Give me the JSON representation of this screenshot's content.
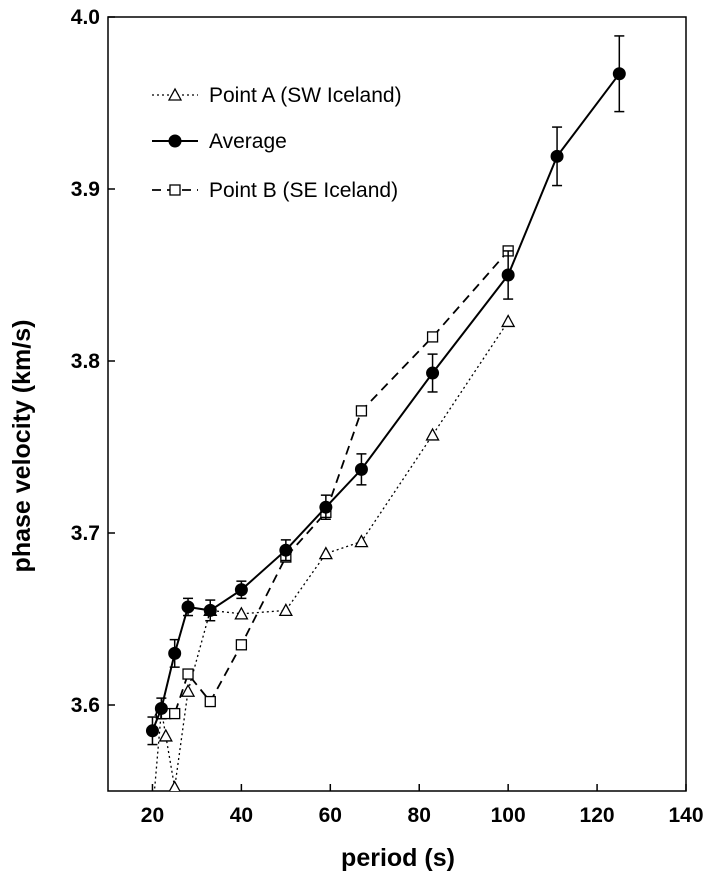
{
  "chart_data": {
    "type": "line",
    "title": "",
    "xlabel": "period (s)",
    "ylabel": "phase velocity (km/s)",
    "xlim": [
      10,
      140
    ],
    "ylim": [
      3.55,
      4.0
    ],
    "xticks": [
      20,
      40,
      60,
      80,
      100,
      120,
      140
    ],
    "yticks": [
      3.6,
      3.7,
      3.8,
      3.9,
      4.0
    ],
    "xtick_labels": [
      "20",
      "40",
      "60",
      "80",
      "100",
      "120",
      "140"
    ],
    "ytick_labels": [
      "3.6",
      "3.7",
      "3.8",
      "3.9",
      "4.0"
    ],
    "grid": false,
    "legend_position": "top-left",
    "series": [
      {
        "name": "Point A (SW Iceland)",
        "line": "dotted",
        "marker": "open-triangle",
        "x": [
          20,
          22,
          23,
          25,
          28,
          33,
          40,
          50,
          59,
          67,
          83,
          100
        ],
        "y": [
          3.537,
          3.597,
          3.582,
          3.552,
          3.608,
          3.655,
          3.653,
          3.655,
          3.688,
          3.695,
          3.757,
          3.823
        ]
      },
      {
        "name": "Average",
        "line": "solid",
        "marker": "filled-circle",
        "x": [
          20,
          22,
          25,
          28,
          33,
          40,
          50,
          59,
          67,
          83,
          100,
          111,
          125
        ],
        "y": [
          3.585,
          3.598,
          3.63,
          3.657,
          3.655,
          3.667,
          3.69,
          3.715,
          3.737,
          3.793,
          3.85,
          3.919,
          3.967
        ],
        "err": [
          0.008,
          0.006,
          0.008,
          0.005,
          0.006,
          0.005,
          0.006,
          0.007,
          0.009,
          0.011,
          0.014,
          0.017,
          0.022
        ]
      },
      {
        "name": "Point B (SE Iceland)",
        "line": "dashed",
        "marker": "open-square",
        "x": [
          22,
          23,
          25,
          28,
          33,
          40,
          50,
          59,
          67,
          83,
          100
        ],
        "y": [
          3.595,
          3.595,
          3.595,
          3.618,
          3.602,
          3.635,
          3.686,
          3.712,
          3.771,
          3.814,
          3.864
        ]
      }
    ]
  }
}
